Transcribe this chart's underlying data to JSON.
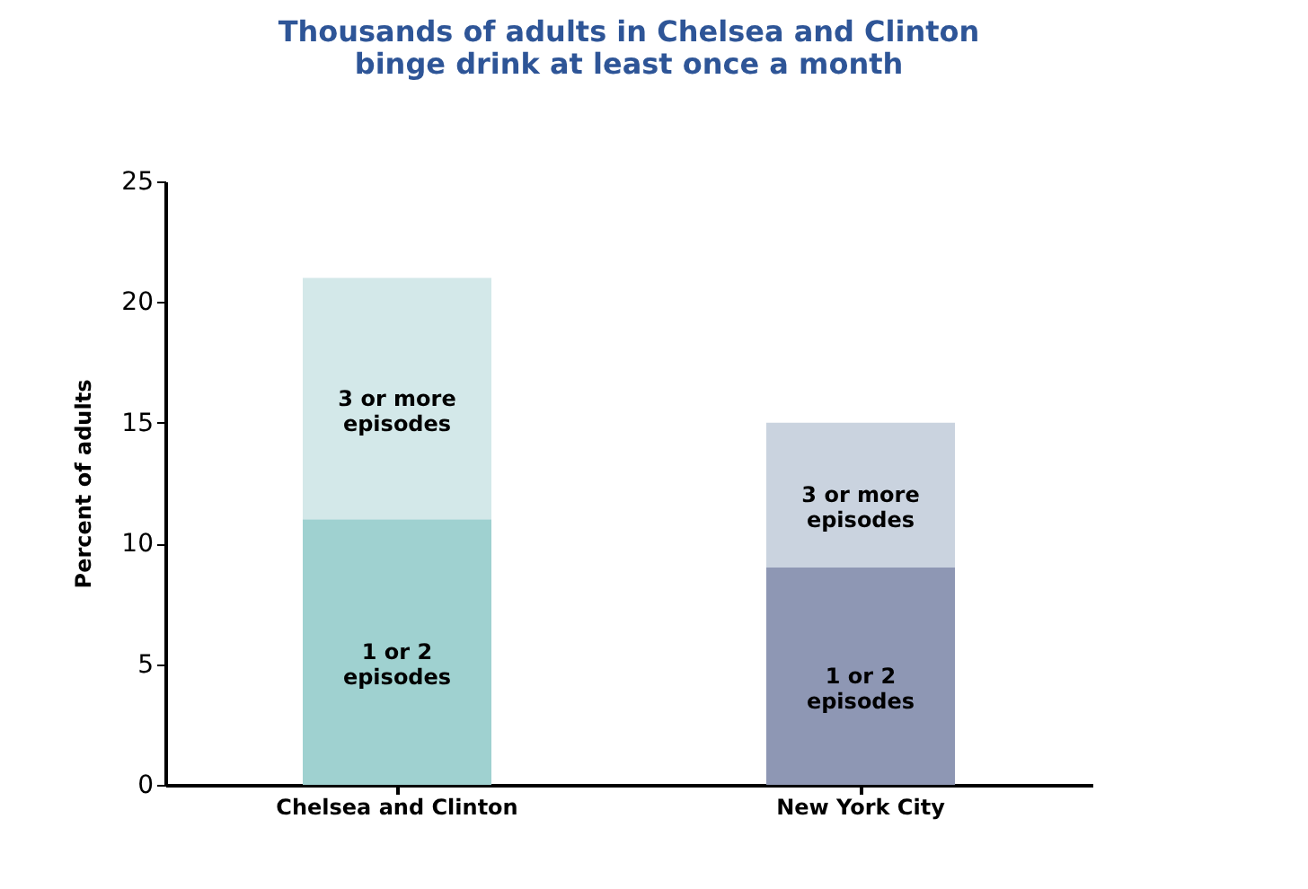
{
  "chart_data": {
    "type": "bar",
    "title": "Thousands of adults in Chelsea and Clinton binge drink at least once a month",
    "ylabel": "Percent of adults",
    "categories": [
      "Chelsea and Clinton",
      "New York City"
    ],
    "stacked": true,
    "series": [
      {
        "name": "1 or 2 episodes",
        "colors": [
          "#9fd1d0",
          "#8e97b4"
        ],
        "values": [
          11,
          9
        ]
      },
      {
        "name": "3 or more episodes",
        "colors": [
          "#d3e8e9",
          "#cad3df"
        ],
        "values": [
          10,
          6
        ]
      }
    ],
    "annotations": [
      "1 or 2 episodes",
      "3 or more episodes"
    ],
    "ylim": [
      0,
      25
    ],
    "yticks": [
      0,
      5,
      10,
      15,
      20,
      25
    ],
    "grid": false
  }
}
